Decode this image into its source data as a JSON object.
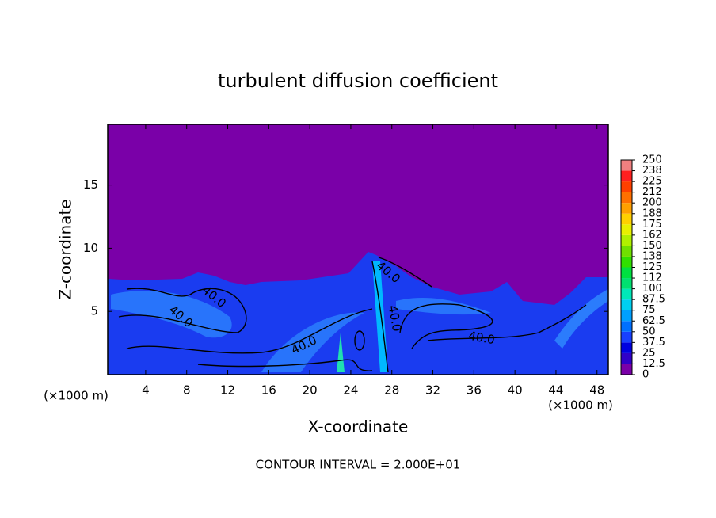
{
  "chart_data": {
    "type": "contour",
    "title": "turbulent diffusion coefficient",
    "xlabel": "X-coordinate",
    "ylabel": "Z-coordinate",
    "x_unit": "(×1000 m)",
    "footer": "CONTOUR INTERVAL = 2.000E+01",
    "xlim": [
      0.3,
      49.1
    ],
    "ylim": [
      0,
      19.8
    ],
    "xticks": [
      4,
      8,
      12,
      16,
      20,
      24,
      28,
      32,
      36,
      40,
      44,
      48
    ],
    "yticks": [
      5,
      10,
      15
    ],
    "background_color": "#7a00a8",
    "contour_color": "#000000",
    "contour_labels": [
      "40.0",
      "40.0",
      "40.0",
      "40.0",
      "40.0",
      "40.0"
    ],
    "colorbar": {
      "ticks": [
        0,
        12.5,
        25,
        37.5,
        50,
        62.5,
        75,
        87.5,
        100,
        {
          "value": 112.5,
          "label": "112"
        },
        125,
        {
          "value": 137.5,
          "label": "138"
        },
        150,
        {
          "value": 162.5,
          "label": "162"
        },
        175,
        {
          "value": 187.5,
          "label": "188"
        },
        200,
        {
          "value": 212.5,
          "label": "212"
        },
        225,
        {
          "value": 237.5,
          "label": "238"
        },
        250
      ],
      "colors": [
        "#7a00a8",
        "#3000c8",
        "#0000e0",
        "#1840ff",
        "#0070ff",
        "#00a0ff",
        "#00d0f0",
        "#00e8b8",
        "#00e070",
        "#00e040",
        "#30e000",
        "#70e000",
        "#b0f000",
        "#e8f000",
        "#ffd000",
        "#ffa000",
        "#ff7000",
        "#ff4000",
        "#ff2020",
        "#f08080"
      ]
    }
  }
}
